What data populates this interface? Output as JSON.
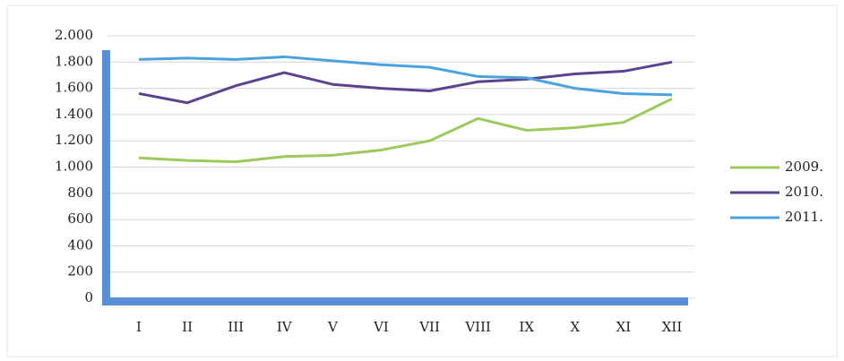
{
  "chart_data": {
    "type": "line",
    "categories": [
      "I",
      "II",
      "III",
      "IV",
      "V",
      "VI",
      "VII",
      "VIII",
      "IX",
      "X",
      "XI",
      "XII"
    ],
    "series": [
      {
        "name": "2009.",
        "color": "#9cc95c",
        "values": [
          1070,
          1050,
          1040,
          1080,
          1090,
          1130,
          1200,
          1370,
          1280,
          1300,
          1340,
          1520
        ]
      },
      {
        "name": "2010.",
        "color": "#5e428f",
        "values": [
          1560,
          1490,
          1620,
          1720,
          1630,
          1600,
          1580,
          1650,
          1670,
          1710,
          1730,
          1800
        ]
      },
      {
        "name": "2011.",
        "color": "#49a3de",
        "values": [
          1820,
          1830,
          1820,
          1840,
          1810,
          1780,
          1760,
          1690,
          1680,
          1600,
          1560,
          1550
        ]
      }
    ],
    "ylim": [
      0,
      2000
    ],
    "yticks": [
      0,
      200,
      400,
      600,
      800,
      {
        "value": 1000,
        "label": "1.000"
      },
      {
        "value": 1200,
        "label": "1.200"
      },
      {
        "value": 1400,
        "label": "1.400"
      },
      {
        "value": 1600,
        "label": "1.600"
      },
      {
        "value": 1800,
        "label": "1.800"
      },
      {
        "value": 2000,
        "label": "2.000"
      }
    ],
    "grid": true,
    "legend": "right"
  }
}
